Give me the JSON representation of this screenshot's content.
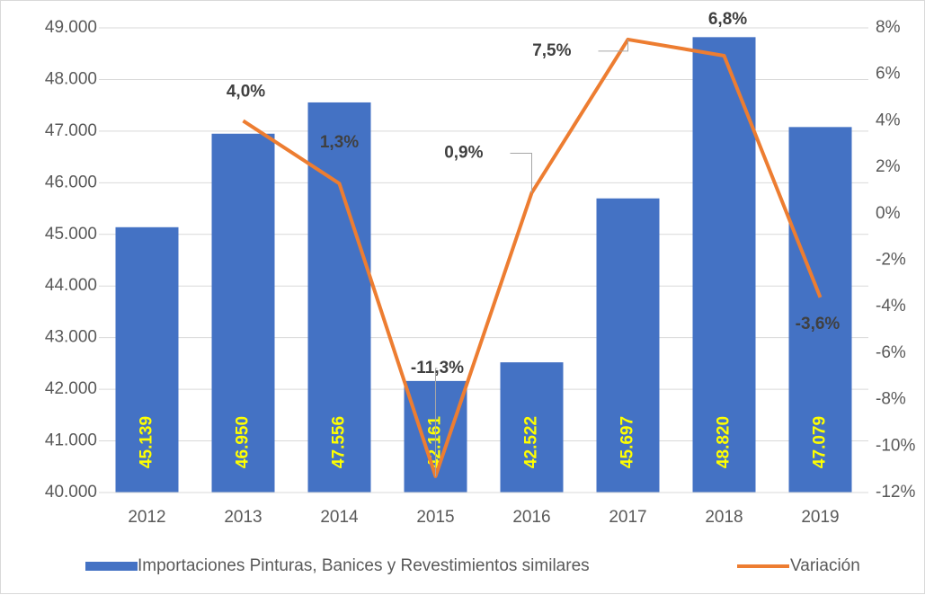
{
  "chart_data": {
    "type": "bar",
    "categories": [
      "2012",
      "2013",
      "2014",
      "2015",
      "2016",
      "2017",
      "2018",
      "2019"
    ],
    "series": [
      {
        "name": "Importaciones Pinturas, Banices y Revestimientos similares",
        "type": "bar",
        "color": "#4472c4",
        "values": [
          45139,
          46950,
          47556,
          42161,
          42522,
          45697,
          48820,
          47079
        ],
        "value_labels": [
          "45.139",
          "46.950",
          "47.556",
          "42.161",
          "42.522",
          "45.697",
          "48.820",
          "47.079"
        ],
        "label_color": "#ffff00"
      },
      {
        "name": "Variación",
        "type": "line",
        "axis": "y2",
        "color": "#ed7d31",
        "values": [
          null,
          4.0,
          1.3,
          -11.3,
          0.9,
          7.5,
          6.8,
          -3.6
        ],
        "value_labels": [
          null,
          "4,0%",
          "1,3%",
          "-11,3%",
          "0,9%",
          "7,5%",
          "6,8%",
          "-3,6%"
        ]
      }
    ],
    "ylim": [
      40000,
      49000
    ],
    "yticks": [
      {
        "value": 40000,
        "label": "40.000"
      },
      {
        "value": 41000,
        "label": "41.000"
      },
      {
        "value": 42000,
        "label": "42.000"
      },
      {
        "value": 43000,
        "label": "43.000"
      },
      {
        "value": 44000,
        "label": "44.000"
      },
      {
        "value": 45000,
        "label": "45.000"
      },
      {
        "value": 46000,
        "label": "46.000"
      },
      {
        "value": 47000,
        "label": "47.000"
      },
      {
        "value": 48000,
        "label": "48.000"
      },
      {
        "value": 49000,
        "label": "49.000"
      }
    ],
    "y2lim": [
      -12,
      8
    ],
    "y2ticks": [
      {
        "value": -12,
        "label": "-12%"
      },
      {
        "value": -10,
        "label": "-10%"
      },
      {
        "value": -8,
        "label": "-8%"
      },
      {
        "value": -6,
        "label": "-6%"
      },
      {
        "value": -4,
        "label": "-4%"
      },
      {
        "value": -2,
        "label": "-2%"
      },
      {
        "value": 0,
        "label": "0%"
      },
      {
        "value": 2,
        "label": "2%"
      },
      {
        "value": 4,
        "label": "4%"
      },
      {
        "value": 6,
        "label": "6%"
      },
      {
        "value": 8,
        "label": "8%"
      }
    ],
    "grid": true,
    "legend": "bottom"
  }
}
